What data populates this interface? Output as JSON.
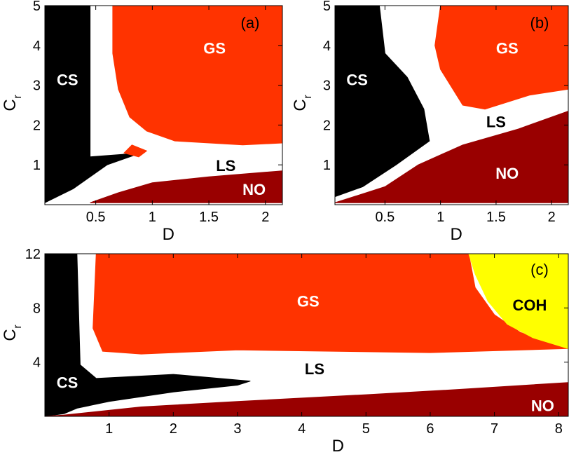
{
  "colors": {
    "CS": "#000000",
    "WHITE": "#ffffff",
    "GS": "#ff3300",
    "NO": "#990000",
    "COH": "#ffff00"
  },
  "chart_data": [
    {
      "type": "heatmap",
      "panel_label": "(a)",
      "xlabel": "D",
      "ylabel": "C",
      "ylabel_sub": "r",
      "xlim": [
        0.05,
        2.15
      ],
      "ylim": [
        0,
        5
      ],
      "xticks": [
        0.5,
        1,
        1.5,
        2
      ],
      "xtick_labels": [
        "0.5",
        "1",
        "1.5",
        "2"
      ],
      "yticks": [
        1,
        2,
        3,
        4,
        5
      ],
      "ytick_labels": [
        "1",
        "2",
        "3",
        "4",
        "5"
      ],
      "regions": [
        {
          "name": "CS",
          "label_x": 0.25,
          "label_y": 3.1,
          "label_color": "#ffffff",
          "polygon": [
            [
              0.05,
              0.05
            ],
            [
              0.05,
              5
            ],
            [
              0.45,
              5
            ],
            [
              0.45,
              1.2
            ],
            [
              0.9,
              1.3
            ],
            [
              0.6,
              1.0
            ],
            [
              0.3,
              0.4
            ],
            [
              0.05,
              0.05
            ]
          ]
        },
        {
          "name": "GS",
          "label_x": 1.55,
          "label_y": 3.9,
          "label_color": "#ffffff",
          "polygon": [
            [
              0.65,
              5
            ],
            [
              2.15,
              5
            ],
            [
              2.15,
              1.55
            ],
            [
              1.8,
              1.5
            ],
            [
              1.2,
              1.6
            ],
            [
              0.95,
              1.85
            ],
            [
              0.8,
              2.2
            ],
            [
              0.7,
              2.9
            ],
            [
              0.65,
              3.8
            ]
          ]
        },
        {
          "name": "GS",
          "label_x": null,
          "label_y": null,
          "label_color": "#ffffff",
          "polygon": [
            [
              0.75,
              1.3
            ],
            [
              0.82,
              1.5
            ],
            [
              0.95,
              1.35
            ],
            [
              0.88,
              1.2
            ]
          ]
        },
        {
          "name": "NO",
          "label_x": 1.9,
          "label_y": 0.35,
          "label_color": "#ffffff",
          "polygon": [
            [
              0.45,
              0.05
            ],
            [
              0.7,
              0.3
            ],
            [
              1.0,
              0.55
            ],
            [
              1.5,
              0.7
            ],
            [
              2.15,
              0.85
            ],
            [
              2.15,
              0.05
            ]
          ]
        }
      ],
      "text_labels": [
        {
          "text": "LS",
          "x": 1.65,
          "y": 0.95,
          "color": "#000000"
        }
      ]
    },
    {
      "type": "heatmap",
      "panel_label": "(b)",
      "xlabel": "D",
      "ylabel": "C",
      "ylabel_sub": "r",
      "xlim": [
        0.05,
        2.15
      ],
      "ylim": [
        0,
        5
      ],
      "xticks": [
        0.5,
        1,
        1.5,
        2
      ],
      "xtick_labels": [
        "0.5",
        "1",
        "1.5",
        "2"
      ],
      "yticks": [
        1,
        2,
        3,
        4,
        5
      ],
      "ytick_labels": [
        "1",
        "2",
        "3",
        "4",
        "5"
      ],
      "regions": [
        {
          "name": "CS",
          "label_x": 0.25,
          "label_y": 3.1,
          "label_color": "#ffffff",
          "polygon": [
            [
              0.05,
              0.2
            ],
            [
              0.05,
              5
            ],
            [
              0.45,
              5
            ],
            [
              0.5,
              3.8
            ],
            [
              0.7,
              3.2
            ],
            [
              0.85,
              2.4
            ],
            [
              0.9,
              1.6
            ],
            [
              0.6,
              1.0
            ],
            [
              0.3,
              0.45
            ],
            [
              0.05,
              0.2
            ]
          ]
        },
        {
          "name": "GS",
          "label_x": 1.6,
          "label_y": 3.9,
          "label_color": "#ffffff",
          "polygon": [
            [
              1.0,
              5
            ],
            [
              2.15,
              5
            ],
            [
              2.15,
              2.9
            ],
            [
              1.8,
              2.75
            ],
            [
              1.4,
              2.4
            ],
            [
              1.2,
              2.5
            ],
            [
              1.0,
              3.4
            ],
            [
              0.95,
              4.0
            ]
          ]
        },
        {
          "name": "NO",
          "label_x": 1.6,
          "label_y": 0.75,
          "label_color": "#ffffff",
          "polygon": [
            [
              0.05,
              0.05
            ],
            [
              0.05,
              0.05
            ],
            [
              0.5,
              0.45
            ],
            [
              0.8,
              1.0
            ],
            [
              1.2,
              1.5
            ],
            [
              1.7,
              1.9
            ],
            [
              2.15,
              2.35
            ],
            [
              2.15,
              0.05
            ]
          ]
        }
      ],
      "text_labels": [
        {
          "text": "LS",
          "x": 1.5,
          "y": 2.05,
          "color": "#000000"
        }
      ]
    },
    {
      "type": "heatmap",
      "panel_label": "(c)",
      "xlabel": "D",
      "ylabel": "C",
      "ylabel_sub": "r",
      "xlim": [
        0,
        8.15
      ],
      "ylim": [
        0,
        12
      ],
      "xticks": [
        1,
        2,
        3,
        4,
        5,
        6,
        7,
        8
      ],
      "xtick_labels": [
        "1",
        "2",
        "3",
        "4",
        "5",
        "6",
        "7",
        "8"
      ],
      "yticks": [
        4,
        8,
        12
      ],
      "ytick_labels": [
        "4",
        "8",
        "12"
      ],
      "regions": [
        {
          "name": "CS",
          "label_x": 0.35,
          "label_y": 2.4,
          "label_color": "#ffffff",
          "polygon": [
            [
              0,
              0
            ],
            [
              0,
              12
            ],
            [
              0.5,
              12
            ],
            [
              0.55,
              3.8
            ],
            [
              0.8,
              2.8
            ],
            [
              2.0,
              3.1
            ],
            [
              3.2,
              2.6
            ],
            [
              3.0,
              2.3
            ],
            [
              2.0,
              1.8
            ],
            [
              1.0,
              1.1
            ],
            [
              0.5,
              0.6
            ],
            [
              0.3,
              0.2
            ]
          ]
        },
        {
          "name": "GS",
          "label_x": 4.1,
          "label_y": 8.4,
          "label_color": "#ffffff",
          "polygon": [
            [
              0.8,
              12
            ],
            [
              6.6,
              12
            ],
            [
              6.7,
              9.5
            ],
            [
              7.0,
              7.5
            ],
            [
              7.4,
              6.2
            ],
            [
              8.15,
              5.0
            ],
            [
              6.0,
              4.7
            ],
            [
              3.0,
              4.9
            ],
            [
              1.5,
              4.6
            ],
            [
              0.9,
              4.8
            ],
            [
              0.75,
              6.5
            ]
          ]
        },
        {
          "name": "COH",
          "label_x": 7.55,
          "label_y": 8.1,
          "label_color": "#000000",
          "polygon": [
            [
              6.6,
              12
            ],
            [
              8.15,
              12
            ],
            [
              8.15,
              5.0
            ],
            [
              7.6,
              5.8
            ],
            [
              7.2,
              6.8
            ],
            [
              6.9,
              8.5
            ],
            [
              6.7,
              10.5
            ]
          ]
        },
        {
          "name": "NO",
          "label_x": 7.75,
          "label_y": 0.7,
          "label_color": "#ffffff",
          "polygon": [
            [
              0,
              0
            ],
            [
              0.3,
              0.1
            ],
            [
              1.5,
              0.7
            ],
            [
              3.0,
              1.1
            ],
            [
              5.0,
              1.6
            ],
            [
              6.5,
              2.0
            ],
            [
              8.15,
              2.5
            ],
            [
              8.15,
              0
            ]
          ]
        }
      ],
      "text_labels": [
        {
          "text": "LS",
          "x": 4.2,
          "y": 3.4,
          "color": "#000000"
        }
      ]
    }
  ]
}
